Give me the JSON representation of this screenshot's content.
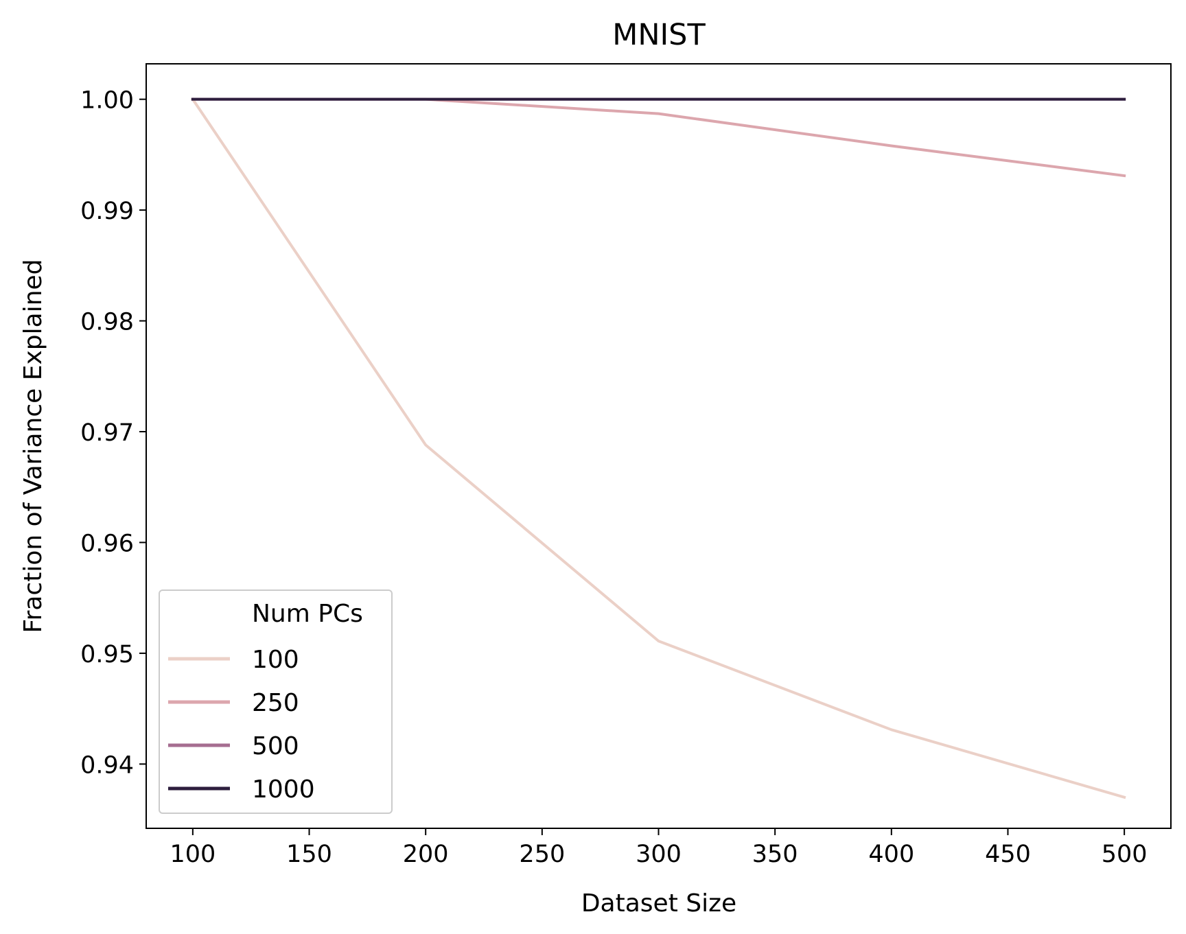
{
  "chart_data": {
    "type": "line",
    "title": "MNIST",
    "xlabel": "Dataset Size",
    "ylabel": "Fraction of Variance Explained",
    "xlim": [
      80,
      520
    ],
    "ylim": [
      0.9342,
      1.0032
    ],
    "xticks": [
      100,
      150,
      200,
      250,
      300,
      350,
      400,
      450,
      500
    ],
    "xtick_labels": [
      "100",
      "150",
      "200",
      "250",
      "300",
      "350",
      "400",
      "450",
      "500"
    ],
    "yticks": [
      0.94,
      0.95,
      0.96,
      0.97,
      0.98,
      0.99,
      1.0
    ],
    "ytick_labels": [
      "0.94",
      "0.95",
      "0.96",
      "0.97",
      "0.98",
      "0.99",
      "1.00"
    ],
    "grid": false,
    "legend": {
      "title": "Num PCs",
      "position": "lower-left"
    },
    "x": [
      100,
      200,
      300,
      400,
      500
    ],
    "series": [
      {
        "name": "100",
        "color": "#ebd0c7",
        "values": [
          1.0,
          0.9688,
          0.9511,
          0.9431,
          0.937
        ]
      },
      {
        "name": "250",
        "color": "#dca6ad",
        "values": [
          1.0,
          1.0,
          0.9987,
          0.9958,
          0.9931
        ]
      },
      {
        "name": "500",
        "color": "#a66d90",
        "values": [
          1.0,
          1.0,
          1.0,
          1.0,
          1.0
        ]
      },
      {
        "name": "1000",
        "color": "#2d1e3e",
        "values": [
          1.0,
          1.0,
          1.0,
          1.0,
          1.0
        ]
      }
    ]
  }
}
